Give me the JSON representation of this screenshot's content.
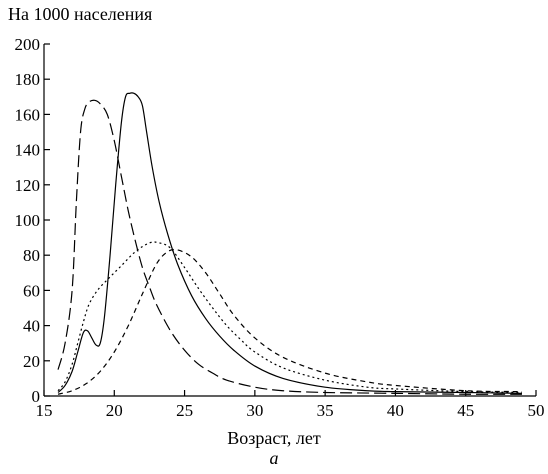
{
  "chart_data": {
    "type": "line",
    "ylabel": "На 1000 населения",
    "xlabel": "Возраст, лет",
    "panel_label": "а",
    "xlim": [
      15,
      50
    ],
    "ylim": [
      0,
      200
    ],
    "xticks": [
      15,
      20,
      25,
      30,
      35,
      40,
      45,
      50
    ],
    "yticks": [
      0,
      20,
      40,
      60,
      80,
      100,
      120,
      140,
      160,
      180,
      200
    ],
    "grid": false,
    "legend": "none",
    "series": [
      {
        "style": "solid",
        "x": [
          16,
          16.5,
          17,
          17.4,
          17.8,
          18.1,
          18.4,
          18.7,
          19.0,
          19.3,
          19.7,
          20.1,
          20.5,
          20.8,
          21.1,
          21.4,
          21.7,
          22.0,
          22.3,
          22.7,
          23.2,
          23.8,
          24.5,
          25.5,
          26.5,
          27.5,
          28.5,
          30,
          32,
          35,
          38,
          40,
          45,
          49
        ],
        "y": [
          2,
          6,
          14,
          25,
          36,
          37,
          33,
          29,
          30,
          45,
          80,
          120,
          155,
          170,
          172,
          172,
          170,
          165,
          150,
          130,
          110,
          92,
          75,
          57,
          44,
          34,
          26,
          17,
          10,
          5,
          3,
          2.5,
          2,
          1.5
        ]
      },
      {
        "style": "long-dash",
        "x": [
          16,
          16.5,
          17,
          17.3,
          17.6,
          17.9,
          18.2,
          18.6,
          19.0,
          19.5,
          20.0,
          20.5,
          21.0,
          21.5,
          22.0,
          22.5,
          23,
          24,
          25,
          26,
          27,
          28,
          30,
          32,
          35,
          40,
          45,
          49
        ],
        "y": [
          15,
          30,
          60,
          110,
          150,
          163,
          167,
          168,
          166,
          160,
          145,
          125,
          105,
          88,
          73,
          62,
          52,
          37,
          26,
          18,
          13,
          9,
          5,
          3,
          2,
          1.5,
          1,
          1
        ]
      },
      {
        "style": "dotted",
        "x": [
          16,
          16.5,
          17,
          17.4,
          17.8,
          18.2,
          18.8,
          19.5,
          20.5,
          21.5,
          22.5,
          23.2,
          24,
          25,
          26,
          27,
          28,
          29,
          30,
          32,
          35,
          38,
          40,
          45,
          49
        ],
        "y": [
          3,
          8,
          18,
          30,
          42,
          52,
          60,
          66,
          74,
          82,
          87,
          87,
          84,
          73,
          61,
          50,
          40,
          32,
          25,
          16,
          9,
          5,
          4,
          2.5,
          2
        ]
      },
      {
        "style": "short-dash",
        "x": [
          16,
          17,
          18,
          19,
          20,
          21,
          22,
          23,
          23.8,
          24.5,
          25.5,
          26.5,
          27.5,
          28.5,
          30,
          32,
          35,
          38,
          40,
          45,
          49
        ],
        "y": [
          1,
          3,
          7,
          14,
          25,
          40,
          58,
          75,
          82,
          83,
          79,
          70,
          58,
          46,
          33,
          22,
          13,
          8,
          6,
          3,
          2.5
        ]
      }
    ]
  }
}
